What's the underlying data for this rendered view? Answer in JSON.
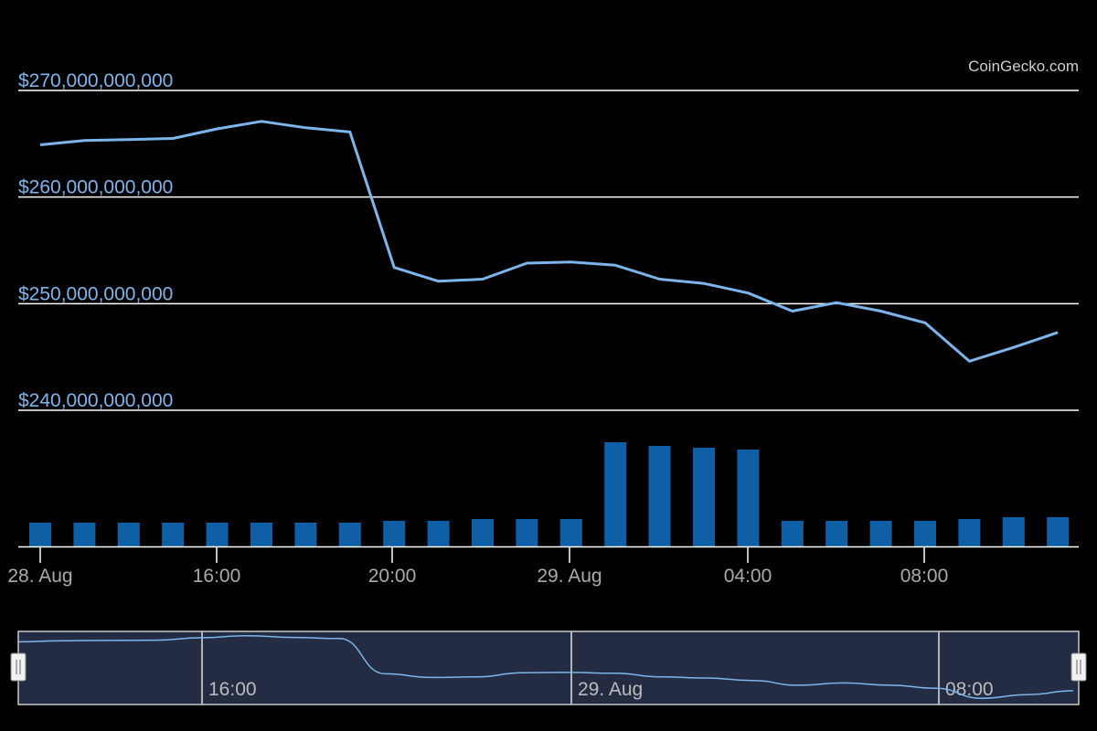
{
  "credit": "CoinGecko.com",
  "chart_data": [
    {
      "type": "line",
      "x_labels": [
        "28. Aug",
        "16:00",
        "20:00",
        "29. Aug",
        "04:00",
        "08:00"
      ],
      "y_ticks": [
        270000000000,
        260000000000,
        250000000000,
        240000000000
      ],
      "y_tick_labels": [
        "$270,000,000,000",
        "$260,000,000,000",
        "$250,000,000,000",
        "$240,000,000,000"
      ],
      "ylim": [
        240000000000,
        270000000000
      ],
      "grid": true,
      "colors": {
        "line": "#7cb5ec",
        "grid": "#ffffff",
        "y_label": "#7cb5ec",
        "x_label": "#aaaaaa"
      },
      "series": [
        {
          "values": [
            264900000000,
            265300000000,
            265400000000,
            265500000000,
            266400000000,
            267100000000,
            266500000000,
            266100000000,
            253400000000,
            252100000000,
            252300000000,
            253800000000,
            253900000000,
            253600000000,
            252300000000,
            251900000000,
            251000000000,
            249300000000,
            250100000000,
            249300000000,
            248200000000,
            244600000000,
            245900000000,
            247300000000
          ]
        }
      ]
    },
    {
      "type": "bar",
      "values": [
        26,
        26,
        26,
        26,
        26,
        26,
        26,
        26,
        28,
        28,
        30,
        30,
        30,
        114,
        110,
        108,
        106,
        28,
        28,
        28,
        28,
        30,
        32,
        32
      ],
      "ylim": [
        0,
        114
      ],
      "colors": {
        "bar": "#0e5fa5"
      }
    },
    {
      "type": "area",
      "x_labels": [
        "16:00",
        "29. Aug",
        "08:00"
      ],
      "colors": {
        "line": "#7cb5ec",
        "fill": "#232c42",
        "border": "#c8c8c8",
        "handle": "#f2f2f2"
      }
    }
  ]
}
